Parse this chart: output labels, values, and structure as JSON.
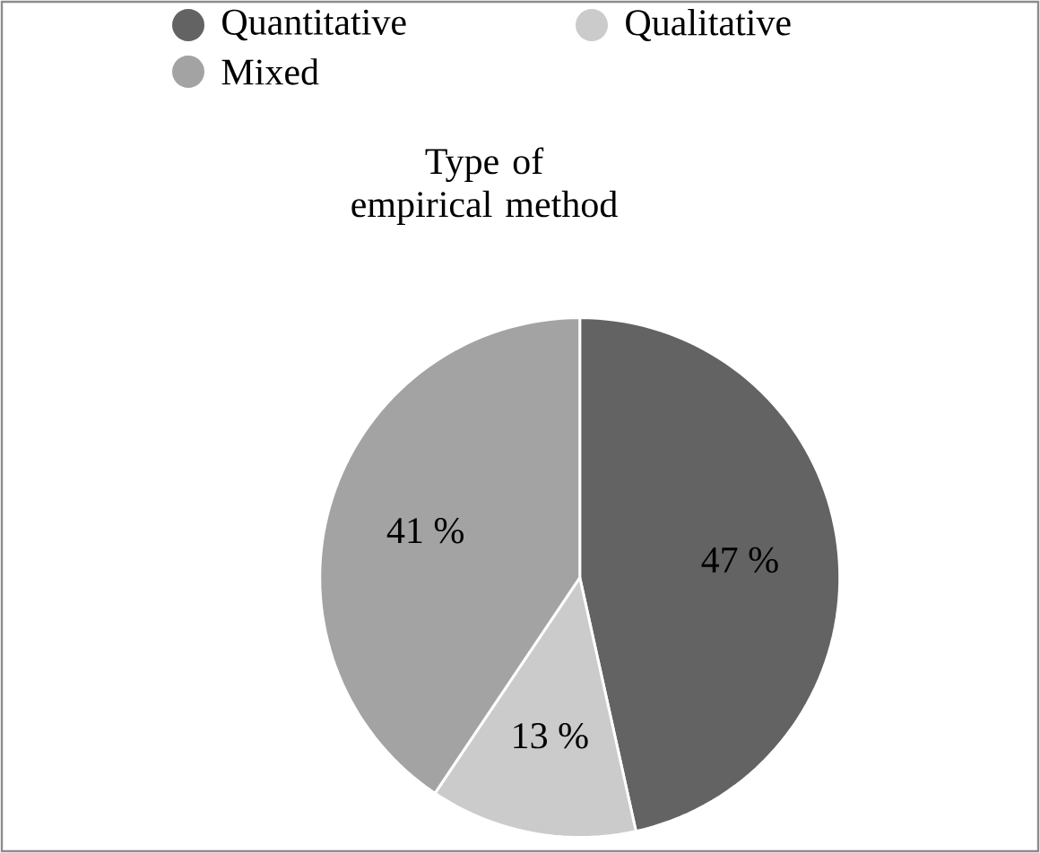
{
  "chart_data": {
    "type": "pie",
    "title": "Type of empirical method",
    "categories": [
      "Quantitative",
      "Qualitative",
      "Mixed"
    ],
    "values": [
      47,
      13,
      41
    ],
    "colors": [
      "#636363",
      "#cbcbcb",
      "#a3a3a3"
    ],
    "value_labels": [
      "47 %",
      "13 %",
      "41 %"
    ],
    "legend": "top"
  }
}
